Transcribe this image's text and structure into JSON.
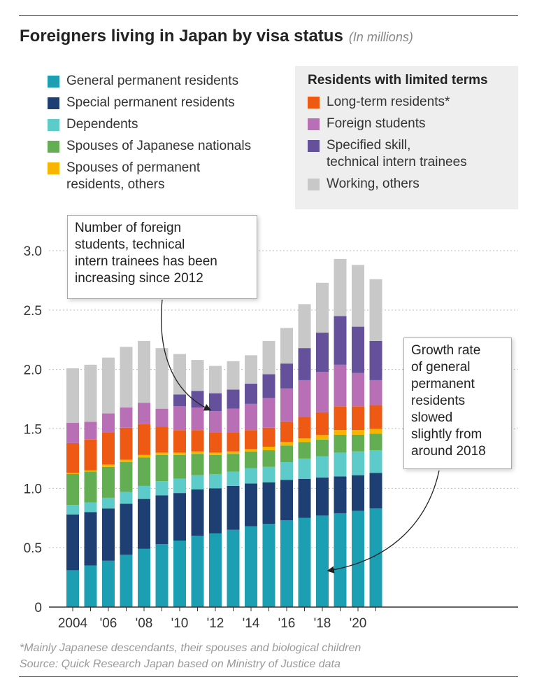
{
  "title": "Foreigners living in Japan by visa status",
  "subtitle": "(In millions)",
  "legend_left": [
    {
      "label": "General permanent residents",
      "color": "#1c9fb2"
    },
    {
      "label": "Special permanent residents",
      "color": "#1d3f73"
    },
    {
      "label": "Dependents",
      "color": "#5ecbcb"
    },
    {
      "label": "Spouses of Japanese nationals",
      "color": "#63ae52"
    },
    {
      "label": "Spouses of permanent\nresidents, others",
      "color": "#f7b500"
    }
  ],
  "legend_right": {
    "heading": "Residents with limited terms",
    "items": [
      {
        "label": "Long-term residents*",
        "color": "#ee5a14"
      },
      {
        "label": "Foreign students",
        "color": "#b86fb5"
      },
      {
        "label": "Specified skill,\ntechnical intern trainees",
        "color": "#65509b"
      },
      {
        "label": "Working, others",
        "color": "#c8c8c8"
      }
    ]
  },
  "annotations": {
    "students": "Number of foreign\nstudents, technical\nintern trainees has been\nincreasing since 2012",
    "growth": "Growth rate\nof general\npermanent\nresidents\nslowed\nslightly from\naround 2018"
  },
  "footnote": "*Mainly Japanese descendants, their spouses and biological children",
  "source": "Source: Quick Research Japan based on Ministry of Justice data",
  "chart_data": {
    "type": "bar",
    "stacked": true,
    "title": "Foreigners living in Japan by visa status",
    "ylabel": "In millions",
    "ylim": [
      0,
      3.0
    ],
    "yticks": [
      "0",
      "0.5",
      "1.0",
      "1.5",
      "2.0",
      "2.5",
      "3.0"
    ],
    "ytick_values": [
      0,
      0.5,
      1.0,
      1.5,
      2.0,
      2.5,
      3.0
    ],
    "categories": [
      "2004",
      "2005",
      "2006",
      "2007",
      "2008",
      "2009",
      "2010",
      "2011",
      "2012",
      "2013",
      "2014",
      "2015",
      "2016",
      "2017",
      "2018",
      "2019",
      "2020",
      "2021"
    ],
    "xtick_labels": [
      "2004",
      "",
      "'06",
      "",
      "'08",
      "",
      "'10",
      "",
      "'12",
      "",
      "'14",
      "",
      "'16",
      "",
      "'18",
      "",
      "'20",
      ""
    ],
    "series": [
      {
        "name": "General permanent residents",
        "color": "#1c9fb2",
        "values": [
          0.31,
          0.35,
          0.39,
          0.44,
          0.49,
          0.53,
          0.56,
          0.6,
          0.62,
          0.65,
          0.68,
          0.7,
          0.73,
          0.75,
          0.77,
          0.79,
          0.81,
          0.83
        ]
      },
      {
        "name": "Special permanent residents",
        "color": "#1d3f73",
        "values": [
          0.47,
          0.45,
          0.44,
          0.43,
          0.42,
          0.41,
          0.4,
          0.39,
          0.38,
          0.37,
          0.36,
          0.35,
          0.34,
          0.33,
          0.32,
          0.31,
          0.3,
          0.3
        ]
      },
      {
        "name": "Dependents",
        "color": "#5ecbcb",
        "values": [
          0.08,
          0.08,
          0.09,
          0.1,
          0.11,
          0.12,
          0.12,
          0.12,
          0.12,
          0.12,
          0.13,
          0.13,
          0.15,
          0.17,
          0.18,
          0.2,
          0.2,
          0.19
        ]
      },
      {
        "name": "Spouses of Japanese nationals",
        "color": "#63ae52",
        "values": [
          0.26,
          0.26,
          0.26,
          0.25,
          0.24,
          0.22,
          0.2,
          0.18,
          0.16,
          0.15,
          0.14,
          0.14,
          0.14,
          0.14,
          0.14,
          0.15,
          0.14,
          0.14
        ]
      },
      {
        "name": "Spouses of permanent residents, others",
        "color": "#f7b500",
        "values": [
          0.01,
          0.01,
          0.02,
          0.02,
          0.02,
          0.02,
          0.02,
          0.02,
          0.02,
          0.02,
          0.02,
          0.03,
          0.03,
          0.03,
          0.04,
          0.04,
          0.04,
          0.04
        ]
      },
      {
        "name": "Long-term residents*",
        "color": "#ee5a14",
        "values": [
          0.25,
          0.26,
          0.27,
          0.27,
          0.26,
          0.22,
          0.19,
          0.18,
          0.17,
          0.16,
          0.16,
          0.16,
          0.17,
          0.18,
          0.19,
          0.2,
          0.2,
          0.2
        ]
      },
      {
        "name": "Foreign students",
        "color": "#b86fb5",
        "values": [
          0.17,
          0.15,
          0.16,
          0.17,
          0.18,
          0.15,
          0.2,
          0.19,
          0.18,
          0.2,
          0.22,
          0.25,
          0.28,
          0.31,
          0.34,
          0.35,
          0.28,
          0.21
        ]
      },
      {
        "name": "Specified skill, technical intern trainees",
        "color": "#65509b",
        "values": [
          0.0,
          0.0,
          0.0,
          0.0,
          0.0,
          0.0,
          0.1,
          0.14,
          0.15,
          0.16,
          0.17,
          0.2,
          0.21,
          0.27,
          0.33,
          0.41,
          0.39,
          0.33
        ]
      },
      {
        "name": "Working, others",
        "color": "#c8c8c8",
        "values": [
          0.46,
          0.48,
          0.47,
          0.51,
          0.52,
          0.51,
          0.34,
          0.26,
          0.23,
          0.24,
          0.24,
          0.28,
          0.3,
          0.37,
          0.42,
          0.48,
          0.52,
          0.52
        ]
      }
    ]
  }
}
